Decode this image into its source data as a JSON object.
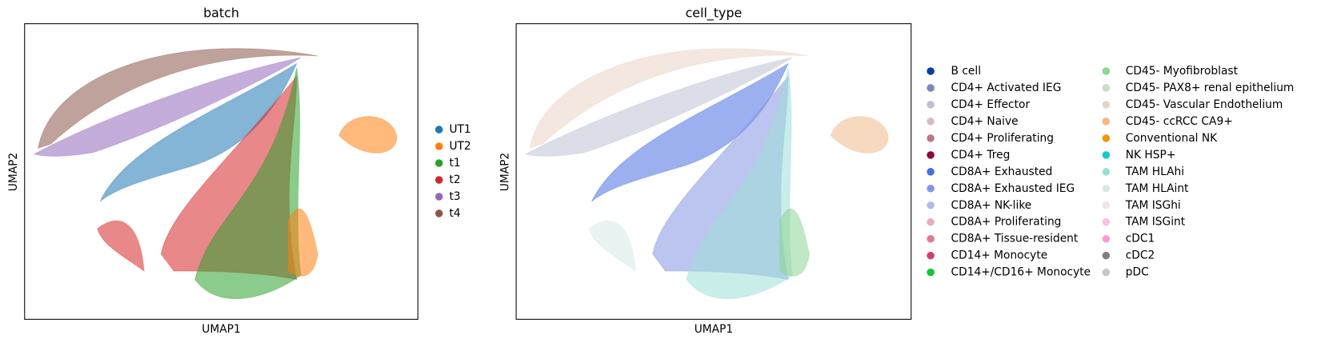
{
  "chart_data": [
    {
      "type": "scatter",
      "title": "batch",
      "xlabel": "UMAP1",
      "ylabel": "UMAP2",
      "series": [
        {
          "name": "UT1",
          "color": "#1f77b4"
        },
        {
          "name": "UT2",
          "color": "#ff7f0e"
        },
        {
          "name": "t1",
          "color": "#2ca02c"
        },
        {
          "name": "t2",
          "color": "#d62728"
        },
        {
          "name": "t3",
          "color": "#9467bd"
        },
        {
          "name": "t4",
          "color": "#8c564b"
        }
      ]
    },
    {
      "type": "scatter",
      "title": "cell_type",
      "xlabel": "UMAP1",
      "ylabel": "UMAP2",
      "series": [
        {
          "name": "B cell",
          "color": "#023fa5"
        },
        {
          "name": "CD4+ Activated IEG",
          "color": "#7d87b9"
        },
        {
          "name": "CD4+ Effector",
          "color": "#bec1d4"
        },
        {
          "name": "CD4+ Naive",
          "color": "#d6bcc0"
        },
        {
          "name": "CD4+ Proliferating",
          "color": "#bb7784"
        },
        {
          "name": "CD4+ Treg",
          "color": "#8e063b"
        },
        {
          "name": "CD8A+ Exhausted",
          "color": "#4a6fe3"
        },
        {
          "name": "CD8A+ Exhausted IEG",
          "color": "#8595e1"
        },
        {
          "name": "CD8A+ NK-like",
          "color": "#b5bbe3"
        },
        {
          "name": "CD8A+ Proliferating",
          "color": "#e6afb9"
        },
        {
          "name": "CD8A+ Tissue-resident",
          "color": "#e07b91"
        },
        {
          "name": "CD14+ Monocyte",
          "color": "#d33f6a"
        },
        {
          "name": "CD14+/CD16+ Monocyte",
          "color": "#11c638"
        },
        {
          "name": "CD45- Myofibroblast",
          "color": "#8dd593"
        },
        {
          "name": "CD45- PAX8+ renal epithelium",
          "color": "#c6dec7"
        },
        {
          "name": "CD45- Vascular Endothelium",
          "color": "#ead3c6"
        },
        {
          "name": "CD45- ccRCC CA9+",
          "color": "#f0b98d"
        },
        {
          "name": "Conventional NK",
          "color": "#ef9708"
        },
        {
          "name": "NK HSP+",
          "color": "#0fcfc0"
        },
        {
          "name": "TAM HLAhi",
          "color": "#9cded6"
        },
        {
          "name": "TAM HLAint",
          "color": "#d5eae7"
        },
        {
          "name": "TAM ISGhi",
          "color": "#f3e1eb"
        },
        {
          "name": "TAM ISGint",
          "color": "#f6c4e1"
        },
        {
          "name": "cDC1",
          "color": "#f79cd4"
        },
        {
          "name": "cDC2",
          "color": "#7f7f7f"
        },
        {
          "name": "pDC",
          "color": "#c7c7c7"
        }
      ]
    }
  ]
}
